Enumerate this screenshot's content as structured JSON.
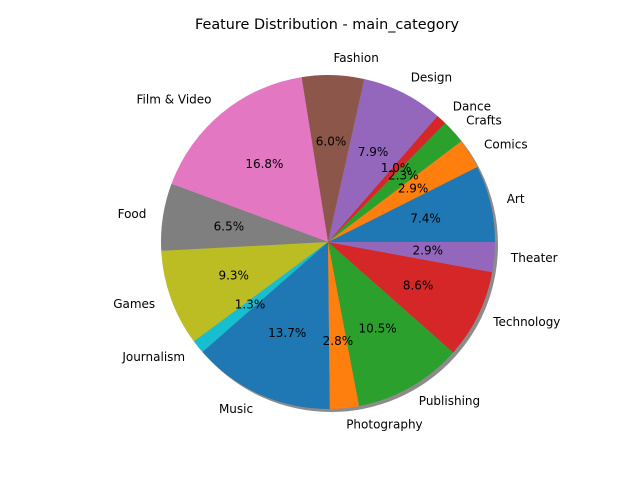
{
  "chart_data": {
    "type": "pie",
    "title": "Feature Distribution - main_category",
    "start_angle_deg": 0,
    "direction": "counterclockwise",
    "shadow": true,
    "slices": [
      {
        "label": "Art",
        "value": 7.4,
        "pct_label": "7.4%",
        "color": "#1f77b4"
      },
      {
        "label": "Comics",
        "value": 2.9,
        "pct_label": "2.9%",
        "color": "#ff7f0e"
      },
      {
        "label": "Crafts",
        "value": 2.3,
        "pct_label": "2.3%",
        "color": "#2ca02c"
      },
      {
        "label": "Dance",
        "value": 1.0,
        "pct_label": "1.0%",
        "color": "#d62728"
      },
      {
        "label": "Design",
        "value": 7.9,
        "pct_label": "7.9%",
        "color": "#9467bd"
      },
      {
        "label": "Fashion",
        "value": 6.0,
        "pct_label": "6.0%",
        "color": "#8c564b"
      },
      {
        "label": "Film & Video",
        "value": 16.8,
        "pct_label": "16.8%",
        "color": "#e377c2"
      },
      {
        "label": "Food",
        "value": 6.5,
        "pct_label": "6.5%",
        "color": "#7f7f7f"
      },
      {
        "label": "Games",
        "value": 9.3,
        "pct_label": "9.3%",
        "color": "#bcbd22"
      },
      {
        "label": "Journalism",
        "value": 1.3,
        "pct_label": "1.3%",
        "color": "#17becf"
      },
      {
        "label": "Music",
        "value": 13.7,
        "pct_label": "13.7%",
        "color": "#1f77b4"
      },
      {
        "label": "Photography",
        "value": 2.8,
        "pct_label": "2.8%",
        "color": "#ff7f0e"
      },
      {
        "label": "Publishing",
        "value": 10.5,
        "pct_label": "10.5%",
        "color": "#2ca02c"
      },
      {
        "label": "Technology",
        "value": 8.6,
        "pct_label": "8.6%",
        "color": "#d62728"
      },
      {
        "label": "Theater",
        "value": 2.9,
        "pct_label": "2.9%",
        "color": "#9467bd"
      }
    ]
  }
}
